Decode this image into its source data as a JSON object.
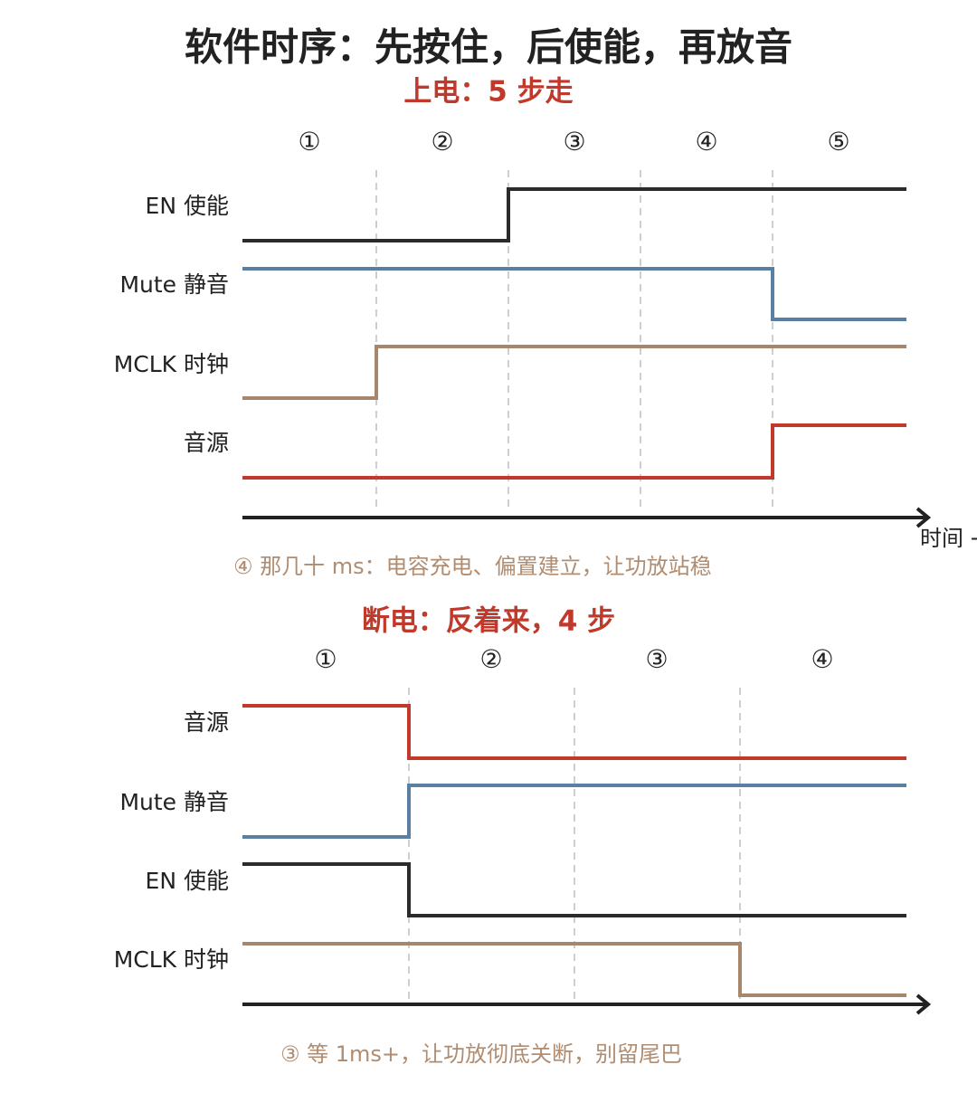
{
  "title": "软件时序：先按住，后使能，再放音",
  "power_on": {
    "heading": "上电：5 步走",
    "steps": [
      "①",
      "②",
      "③",
      "④",
      "⑤"
    ],
    "signals": [
      "EN 使能",
      "Mute 静音",
      "MCLK 时钟",
      "音源"
    ],
    "axis_label": "时间 →",
    "note": "④ 那几十 ms：电容充电、偏置建立，让功放站稳"
  },
  "power_off": {
    "heading": "断电：反着来，4 步",
    "steps": [
      "①",
      "②",
      "③",
      "④"
    ],
    "signals": [
      "音源",
      "Mute 静音",
      "EN 使能",
      "MCLK 时钟"
    ],
    "note": "③ 等 1ms+，让功放彻底关断，别留尾巴"
  }
}
